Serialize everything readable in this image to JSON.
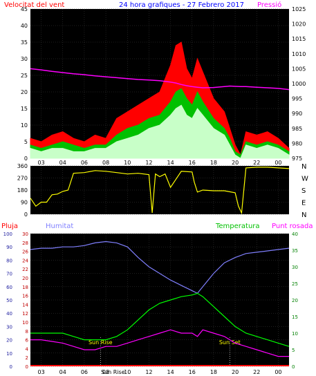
{
  "header": {
    "left_title": "Velocitat del vent",
    "center_title": "24 hora grafiques - 27 Febrero 2017",
    "right_title": "Pressió"
  },
  "colors": {
    "plot_bg": "#000000",
    "grid": "#404040",
    "wind_gust": "#ff0000",
    "wind_avg": "#00c000",
    "wind_speed": "#c8ffc8",
    "pressure": "#ff00ff",
    "direction": "#ffff00",
    "humidity": "#8080ff",
    "temperature": "#00ff00",
    "dewpoint": "#ff00ff",
    "rain": "#ff0000"
  },
  "time_axis": {
    "ticks": [
      "03",
      "04",
      "06",
      "08",
      "10",
      "12",
      "14",
      "16",
      "18",
      "20",
      "22",
      "00"
    ],
    "positions_hours": [
      1,
      3,
      5,
      7,
      9,
      11,
      13,
      15,
      17,
      19,
      21,
      23
    ]
  },
  "chart_data": [
    {
      "type": "line",
      "name": "wind_pressure",
      "title": "Velocitat del vent",
      "right_title": "Pressió",
      "x_hours": [
        0,
        1,
        2,
        3,
        4,
        5,
        6,
        7,
        8,
        9,
        10,
        11,
        12,
        13,
        13.5,
        14,
        14.5,
        15,
        15.5,
        16,
        17,
        18,
        18.5,
        19,
        19.5,
        20,
        21,
        22,
        23,
        24
      ],
      "series": [
        {
          "name": "gust",
          "axis": "left",
          "values": [
            6,
            5,
            7,
            8,
            6,
            5,
            7,
            6,
            12,
            14,
            16,
            18,
            20,
            28,
            34,
            35,
            27,
            24,
            30,
            26,
            18,
            14,
            9,
            4,
            1,
            8,
            7,
            8,
            6,
            3
          ]
        },
        {
          "name": "average",
          "axis": "left",
          "values": [
            4,
            3,
            4,
            5,
            4,
            3,
            4,
            4,
            7,
            9,
            10,
            12,
            13,
            17,
            20,
            21,
            18,
            16,
            20,
            17,
            12,
            9,
            6,
            2,
            1,
            5,
            4,
            5,
            4,
            2
          ]
        },
        {
          "name": "speed",
          "axis": "left",
          "values": [
            3,
            2,
            3,
            3,
            2,
            2,
            3,
            3,
            5,
            6,
            7,
            9,
            10,
            13,
            15,
            16,
            13,
            12,
            15,
            13,
            9,
            7,
            4,
            1,
            0,
            4,
            3,
            4,
            3,
            1
          ]
        },
        {
          "name": "pressure",
          "axis": "right",
          "values": [
            1005,
            1004.6,
            1004.1,
            1003.7,
            1003.3,
            1003,
            1002.6,
            1002.3,
            1002,
            1001.7,
            1001.4,
            1001.2,
            1001,
            1000.5,
            1000.2,
            999.7,
            999.3,
            999,
            998.8,
            998.6,
            998.7,
            999,
            999.2,
            999.1,
            999,
            999,
            998.8,
            998.6,
            998.4,
            998
          ]
        }
      ],
      "y_left": {
        "min": 0,
        "max": 45,
        "ticks": [
          0,
          5,
          10,
          15,
          20,
          25,
          30,
          35,
          40,
          45
        ]
      },
      "y_right": {
        "min": 975,
        "max": 1025,
        "ticks": [
          975,
          980,
          985,
          990,
          995,
          1000,
          1005,
          1010,
          1015,
          1020,
          1025
        ]
      }
    },
    {
      "type": "line",
      "name": "wind_direction",
      "x_hours": [
        0,
        0.5,
        1,
        1.5,
        2,
        2.5,
        3,
        3.5,
        4,
        5,
        6,
        7,
        8,
        9,
        10,
        11,
        11.3,
        11.6,
        12,
        12.5,
        13,
        13.5,
        14,
        15,
        15.2,
        15.5,
        16,
        17,
        18,
        19,
        19.3,
        19.6,
        20,
        21,
        22,
        23,
        24
      ],
      "series": [
        {
          "name": "direction",
          "values": [
            120,
            60,
            90,
            90,
            145,
            150,
            170,
            180,
            305,
            310,
            325,
            320,
            310,
            300,
            305,
            295,
            10,
            300,
            280,
            300,
            200,
            260,
            320,
            315,
            240,
            165,
            180,
            175,
            175,
            160,
            60,
            10,
            345,
            350,
            350,
            345,
            340
          ]
        }
      ],
      "y_left": {
        "min": 0,
        "max": 360,
        "ticks": [
          0,
          90,
          180,
          270,
          360
        ]
      },
      "y_right_labels": [
        "N",
        "W",
        "S",
        "E",
        "N"
      ]
    },
    {
      "type": "line",
      "name": "humidity_temp",
      "left_outer_title": "Pluja",
      "left_inner_title": "Humitat",
      "right_inner_title": "Temperatura",
      "right_outer_title": "Punt rosada",
      "x_hours": [
        0,
        1,
        2,
        3,
        4,
        5,
        6,
        7,
        8,
        9,
        10,
        11,
        12,
        13,
        14,
        15,
        15.5,
        16,
        17,
        18,
        19,
        20,
        21,
        22,
        23,
        24
      ],
      "series": [
        {
          "name": "humidity",
          "axis": "humidity",
          "values": [
            88,
            89,
            89,
            90,
            90,
            91,
            93,
            94,
            93,
            90,
            82,
            75,
            70,
            65,
            61,
            57,
            55,
            60,
            70,
            78,
            82,
            85,
            86,
            87,
            88,
            89
          ]
        },
        {
          "name": "temperature",
          "axis": "temperature",
          "values": [
            10,
            10,
            10,
            10,
            9,
            8,
            8,
            8,
            9,
            11,
            14,
            17,
            19,
            20,
            21,
            21.5,
            22,
            21,
            18,
            15,
            12,
            10,
            9,
            8,
            7,
            6
          ]
        },
        {
          "name": "dewpoint",
          "axis": "temperature",
          "values": [
            8,
            8,
            7.5,
            7,
            6,
            5,
            5,
            6,
            6,
            7,
            8,
            9,
            10,
            11,
            10,
            10,
            9,
            11,
            10,
            9,
            7,
            6,
            5,
            4,
            3,
            3
          ]
        },
        {
          "name": "rain",
          "axis": "rain",
          "values": [
            0,
            0,
            0,
            0,
            0,
            0,
            0,
            0,
            0,
            0,
            0,
            0,
            0,
            0,
            0,
            0,
            0,
            0,
            0,
            0,
            0,
            0,
            0,
            0,
            0,
            0
          ]
        }
      ],
      "y_rain": {
        "min": 0,
        "max": 30,
        "ticks": [
          0,
          2,
          4,
          6,
          8,
          10,
          12,
          14,
          16,
          18,
          20,
          22,
          24,
          26,
          28,
          30
        ]
      },
      "y_humidity": {
        "min": 0,
        "max": 100,
        "ticks": [
          0,
          10,
          20,
          30,
          40,
          50,
          60,
          70,
          80,
          90,
          100
        ]
      },
      "y_temperature": {
        "min": 0,
        "max": 40,
        "ticks": [
          0,
          5,
          10,
          15,
          20,
          25,
          30,
          35,
          40
        ]
      },
      "annotations": [
        {
          "label": "Sun Rise",
          "x_hour": 6.5
        },
        {
          "label": "Sun Set",
          "x_hour": 18.5
        }
      ],
      "bottom_extra_label": "Sun Rise"
    }
  ]
}
